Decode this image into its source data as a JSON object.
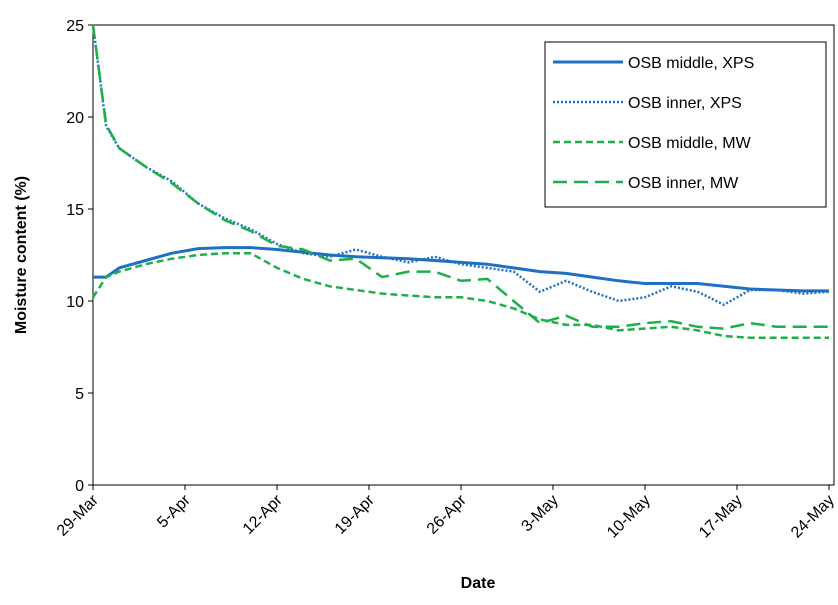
{
  "chart_data": {
    "type": "line",
    "xlabel": "Date",
    "ylabel": "Moisture content (%)",
    "x": [
      "29-Mar",
      "30-Mar",
      "31-Mar",
      "2-Apr",
      "4-Apr",
      "6-Apr",
      "8-Apr",
      "10-Apr",
      "12-Apr",
      "14-Apr",
      "16-Apr",
      "18-Apr",
      "20-Apr",
      "22-Apr",
      "24-Apr",
      "26-Apr",
      "28-Apr",
      "30-Apr",
      "2-May",
      "4-May",
      "6-May",
      "8-May",
      "10-May",
      "12-May",
      "14-May",
      "16-May",
      "18-May",
      "20-May",
      "22-May",
      "24-May"
    ],
    "series": [
      {
        "name": "OSB middle, XPS",
        "color": "#1f6fc2",
        "dash": "solid",
        "values": [
          11.3,
          11.3,
          11.8,
          12.2,
          12.6,
          12.85,
          12.9,
          12.9,
          12.8,
          12.65,
          12.5,
          12.4,
          12.35,
          12.3,
          12.2,
          12.1,
          12.0,
          11.8,
          11.6,
          11.5,
          11.3,
          11.1,
          10.95,
          10.95,
          10.95,
          10.8,
          10.65,
          10.6,
          10.55,
          10.55
        ]
      },
      {
        "name": "OSB inner, XPS",
        "color": "#1f6fc2",
        "dash": "dotted",
        "values": [
          25,
          19.5,
          18.3,
          17.3,
          16.5,
          15.3,
          14.5,
          13.9,
          13.1,
          12.6,
          12.4,
          12.8,
          12.4,
          12.1,
          12.4,
          12.0,
          11.8,
          11.6,
          10.5,
          11.1,
          10.5,
          10.0,
          10.2,
          10.8,
          10.5,
          9.8,
          10.6,
          10.6,
          10.4,
          10.5
        ]
      },
      {
        "name": "OSB middle, MW",
        "color": "#1db04a",
        "dash": "dashed",
        "values": [
          10.2,
          11.3,
          11.6,
          12.0,
          12.3,
          12.5,
          12.6,
          12.6,
          11.8,
          11.2,
          10.8,
          10.6,
          10.4,
          10.3,
          10.2,
          10.2,
          10.0,
          9.6,
          9.0,
          8.7,
          8.7,
          8.4,
          8.5,
          8.6,
          8.4,
          8.1,
          8.0,
          8.0,
          8.0,
          8.0
        ]
      },
      {
        "name": "OSB inner, MW",
        "color": "#1db04a",
        "dash": "longdash",
        "values": [
          25,
          19.6,
          18.3,
          17.3,
          16.4,
          15.3,
          14.4,
          13.8,
          13.0,
          12.8,
          12.2,
          12.3,
          11.3,
          11.6,
          11.6,
          11.1,
          11.2,
          10.0,
          8.8,
          9.2,
          8.6,
          8.6,
          8.8,
          8.9,
          8.6,
          8.5,
          8.8,
          8.6,
          8.6,
          8.6
        ]
      }
    ],
    "xlim": [
      "29-Mar",
      "24-May"
    ],
    "xticks": [
      "29-Mar",
      "5-Apr",
      "12-Apr",
      "19-Apr",
      "26-Apr",
      "3-May",
      "10-May",
      "17-May",
      "24-May"
    ],
    "ylim": [
      0,
      25
    ],
    "yticks": [
      0,
      5,
      10,
      15,
      20,
      25
    ],
    "grid": false,
    "legend": "upper right"
  }
}
